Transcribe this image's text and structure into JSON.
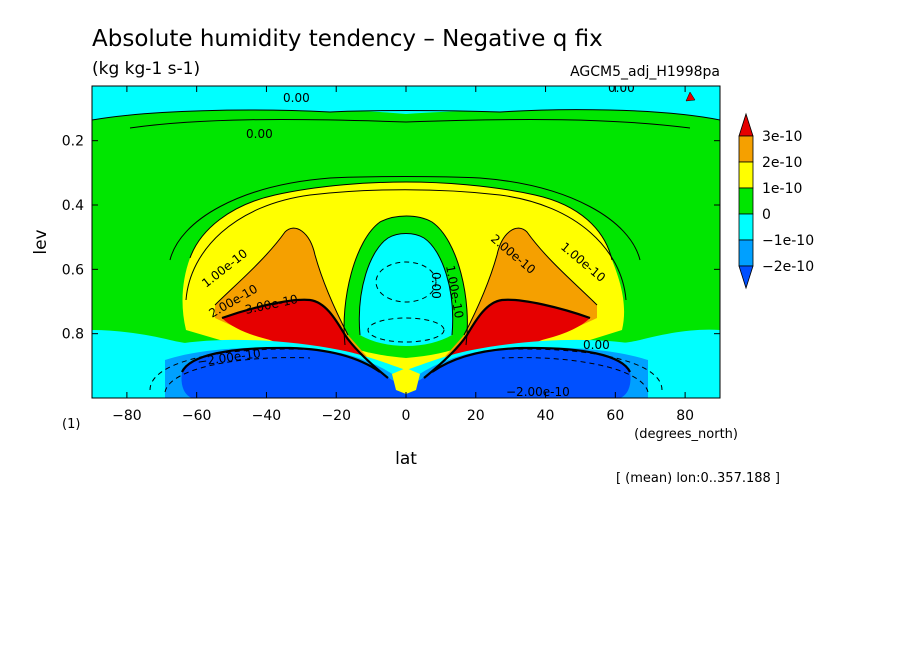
{
  "chart_data": {
    "type": "contour",
    "title": "Absolute humidity tendency – Negative q fix",
    "units": "(kg kg-1 s-1)",
    "source": "AGCM5_adj_H1998pa",
    "xlabel": "lat",
    "ylabel": "lev",
    "x_units": "(degrees_north)",
    "y_units": "(1)",
    "xlim": [
      -90,
      90
    ],
    "ylim": [
      1.0,
      0.03
    ],
    "xticks": [
      -80,
      -60,
      -40,
      -20,
      0,
      20,
      40,
      60,
      80
    ],
    "yticks": [
      0.2,
      0.4,
      0.6,
      0.8
    ],
    "footnote": "[ (mean) lon:0..357.188 ]",
    "colorbar": {
      "labels": [
        "3e-10",
        "2e-10",
        "1e-10",
        "0",
        "−1e-10",
        "−2e-10"
      ],
      "colors": [
        "#e60000",
        "#f5a000",
        "#ffff00",
        "#00e600",
        "#00ffff",
        "#00a0ff",
        "#0050ff"
      ]
    },
    "contour_labels": [
      "0.00",
      "0.00",
      "0.00",
      "1.00e-10",
      "1.00e-10",
      "2.00e-10",
      "2.00e-10",
      "3.00e-10",
      "1.00e-10",
      "0.00",
      "0.00",
      "−2.00e-10",
      "−2.00e-10"
    ]
  },
  "colors": {
    "c3": "#e60000",
    "c2": "#f5a000",
    "c1": "#ffff00",
    "c0": "#00e600",
    "cn1": "#00ffff",
    "cn2": "#00a0ff",
    "cn3": "#0050ff"
  }
}
